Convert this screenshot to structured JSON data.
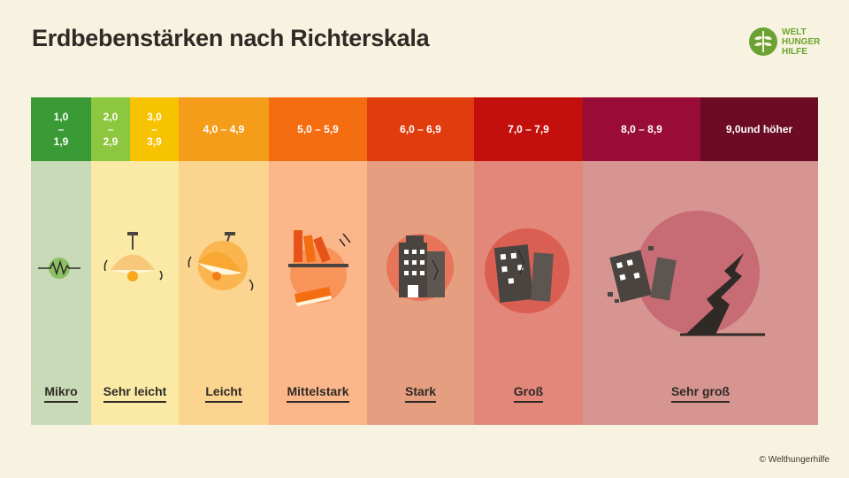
{
  "title": "Erdbebenstärken nach Richterskala",
  "logo": {
    "line1": "WELT",
    "line2": "HUNGER",
    "line3": "HILFE"
  },
  "copyright": "© Welthungerhilfe",
  "scale": [
    {
      "range_top": "1,0",
      "range_mid": "–",
      "range_bottom": "1,9",
      "label": "Mikro",
      "icon": "seismograph-icon"
    },
    {
      "range_top": "2,0",
      "range_mid": "–",
      "range_bottom": "2,9",
      "label": "Sehr leicht",
      "icon": "hanging-lamp-icon"
    },
    {
      "range_top": "3,0",
      "range_mid": "–",
      "range_bottom": "3,9",
      "label": "",
      "icon": ""
    },
    {
      "range": "4,0 – 4,9",
      "label": "Leicht",
      "icon": "swinging-lamp-icon"
    },
    {
      "range": "5,0 – 5,9",
      "label": "Mittelstark",
      "icon": "falling-books-icon"
    },
    {
      "range": "6,0 – 6,9",
      "label": "Stark",
      "icon": "damaged-buildings-icon"
    },
    {
      "range": "7,0 – 7,9",
      "label": "Groß",
      "icon": "cracked-buildings-icon"
    },
    {
      "range": "8,0 – 8,9",
      "label": "Sehr groß",
      "icon": "collapsed-buildings-ground-crack-icon"
    },
    {
      "range": "9,0und höher",
      "label": "",
      "icon": ""
    }
  ],
  "colors": {
    "background": "#f8f3e0",
    "header": [
      "#3a9a35",
      "#8dc63f",
      "#f7c300",
      "#f59d1b",
      "#f46d10",
      "#e03c0e",
      "#c4100c",
      "#9a0c38",
      "#6b0b24"
    ],
    "body": [
      "#c8dab8",
      "#fbeaa5",
      "#fbd48f",
      "#fbb78a",
      "#e59e7f",
      "#e3877b",
      "#d69591"
    ]
  }
}
